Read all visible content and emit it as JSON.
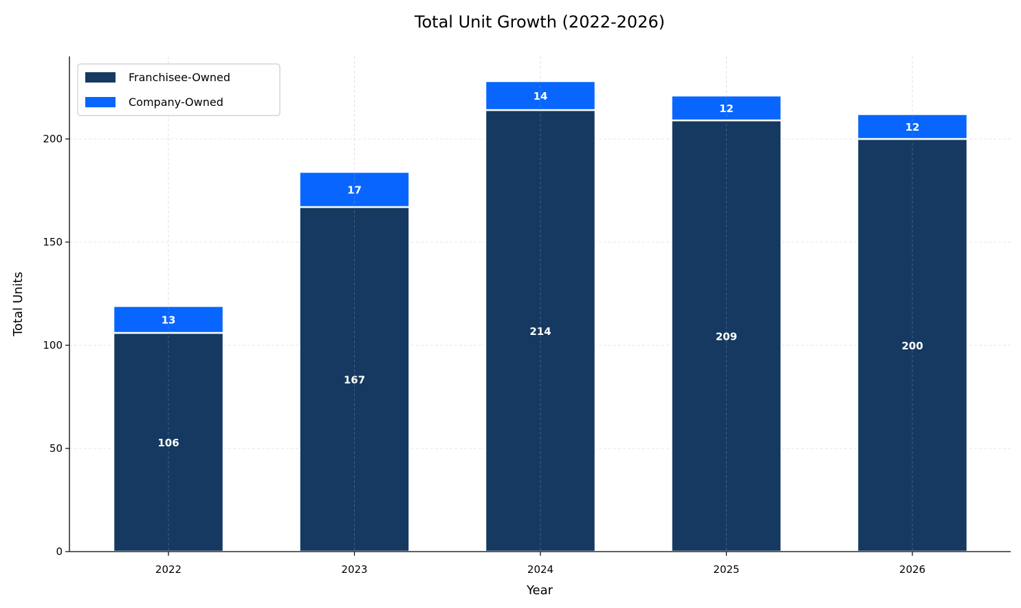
{
  "chart_data": {
    "type": "bar",
    "stacked": true,
    "title": "Total Unit Growth (2022-2026)",
    "xlabel": "Year",
    "ylabel": "Total Units",
    "categories": [
      "2022",
      "2023",
      "2024",
      "2025",
      "2026"
    ],
    "series": [
      {
        "name": "Franchisee-Owned",
        "values": [
          106,
          167,
          214,
          209,
          200
        ],
        "color": "#153960"
      },
      {
        "name": "Company-Owned",
        "values": [
          13,
          17,
          14,
          12,
          12
        ],
        "color": "#0866ff"
      }
    ],
    "ylim": [
      0,
      240
    ],
    "yticks": [
      0,
      50,
      100,
      150,
      200
    ],
    "grid": true,
    "legend_position": "top-left"
  }
}
